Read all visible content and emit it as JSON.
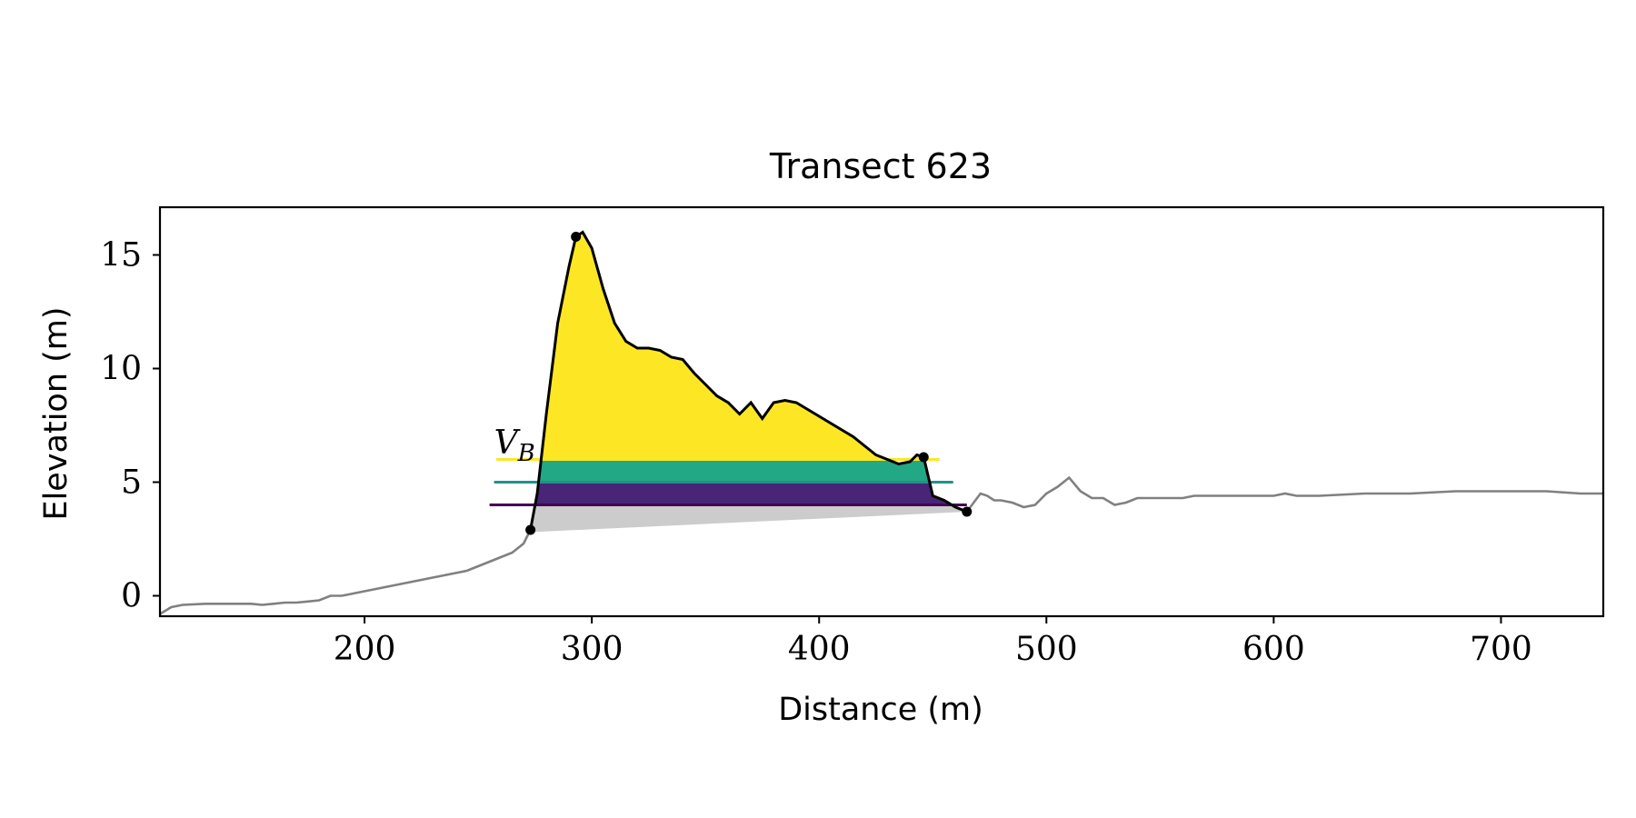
{
  "chart_data": {
    "type": "line",
    "title": "Transect 623",
    "xlabel": "Distance (m)",
    "ylabel": "Elevation (m)",
    "xlim": [
      110,
      745
    ],
    "ylim": [
      -0.9,
      17.1
    ],
    "xticks": [
      200,
      300,
      400,
      500,
      600,
      700
    ],
    "yticks": [
      0,
      5,
      10,
      15
    ],
    "grid": false,
    "legend": "none",
    "colors": {
      "profile": "#808080",
      "dune": "#000000",
      "base": "#cccccc",
      "level_high": "#fde725",
      "level_mid": "#21918c",
      "level_low": "#440154",
      "band_top": "#fde725",
      "band_mid": "#22a884",
      "band_low": "#482576"
    },
    "profile": {
      "x": [
        110,
        115,
        120,
        130,
        140,
        150,
        155,
        160,
        165,
        170,
        175,
        180,
        185,
        190,
        195,
        200,
        205,
        210,
        215,
        220,
        225,
        230,
        235,
        240,
        245,
        250,
        255,
        260,
        265,
        270,
        273,
        276,
        280,
        285,
        290,
        293,
        296,
        300,
        305,
        310,
        315,
        320,
        325,
        330,
        335,
        340,
        345,
        350,
        355,
        360,
        365,
        370,
        375,
        380,
        385,
        390,
        395,
        400,
        405,
        410,
        415,
        420,
        425,
        430,
        435,
        440,
        443,
        446,
        450,
        455,
        460,
        465,
        468,
        471,
        474,
        477,
        480,
        485,
        490,
        495,
        500,
        505,
        510,
        515,
        520,
        525,
        530,
        535,
        540,
        545,
        550,
        555,
        560,
        565,
        570,
        575,
        580,
        590,
        600,
        605,
        610,
        620,
        640,
        660,
        680,
        700,
        720,
        735,
        745
      ],
      "y": [
        -0.8,
        -0.5,
        -0.4,
        -0.35,
        -0.35,
        -0.35,
        -0.4,
        -0.35,
        -0.3,
        -0.3,
        -0.25,
        -0.2,
        0.0,
        0.0,
        0.1,
        0.2,
        0.3,
        0.4,
        0.5,
        0.6,
        0.7,
        0.8,
        0.9,
        1.0,
        1.1,
        1.3,
        1.5,
        1.7,
        1.9,
        2.3,
        2.9,
        4.5,
        8.0,
        12.0,
        14.5,
        15.8,
        16.0,
        15.3,
        13.5,
        12.0,
        11.2,
        10.9,
        10.9,
        10.8,
        10.5,
        10.4,
        9.8,
        9.3,
        8.8,
        8.5,
        8.0,
        8.5,
        7.8,
        8.5,
        8.6,
        8.5,
        8.2,
        7.9,
        7.6,
        7.3,
        7.0,
        6.6,
        6.2,
        6.0,
        5.8,
        5.9,
        6.2,
        6.1,
        4.4,
        4.2,
        3.9,
        3.7,
        4.1,
        4.5,
        4.4,
        4.2,
        4.2,
        4.1,
        3.9,
        4.0,
        4.5,
        4.8,
        5.2,
        4.6,
        4.3,
        4.3,
        4.0,
        4.1,
        4.3,
        4.3,
        4.3,
        4.3,
        4.3,
        4.4,
        4.4,
        4.4,
        4.4,
        4.4,
        4.4,
        4.5,
        4.4,
        4.4,
        4.5,
        4.5,
        4.6,
        4.6,
        4.6,
        4.5,
        4.5
      ]
    },
    "dune_segment": {
      "x_start": 273,
      "x_crest": 293,
      "x_heel": 446,
      "x_end": 465
    },
    "key_points": [
      {
        "x": 273,
        "y": 2.9
      },
      {
        "x": 293,
        "y": 15.8
      },
      {
        "x": 446,
        "y": 6.1
      },
      {
        "x": 465,
        "y": 3.7
      }
    ],
    "base_line": {
      "x": [
        273,
        465
      ],
      "y": [
        2.8,
        3.7
      ]
    },
    "levels": [
      6.0,
      5.0,
      4.0
    ],
    "level_line_x_start": [
      258,
      257,
      255
    ],
    "annotation": {
      "text": "V",
      "subscript": "B",
      "x": 257,
      "y": 6.1
    }
  }
}
